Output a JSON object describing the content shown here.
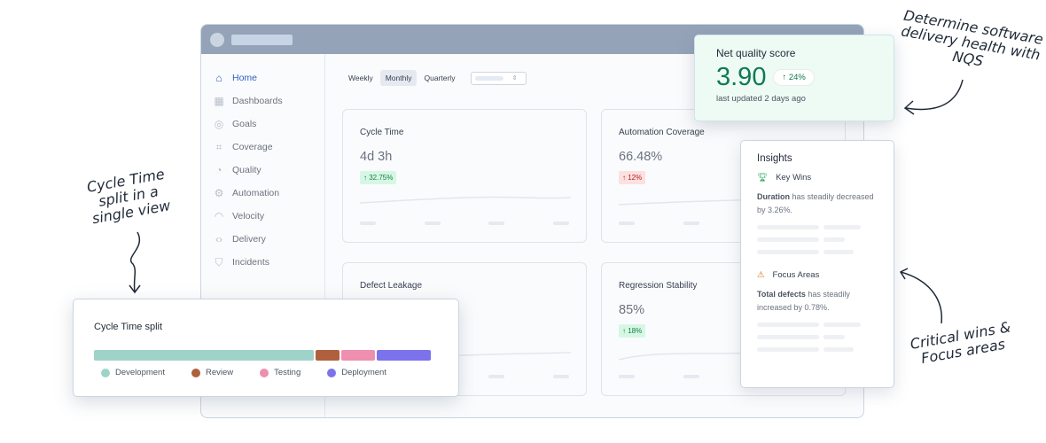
{
  "sidebar": {
    "items": [
      {
        "label": "Home",
        "icon": "home-icon",
        "active": true
      },
      {
        "label": "Dashboards",
        "icon": "grid-icon"
      },
      {
        "label": "Goals",
        "icon": "target-icon"
      },
      {
        "label": "Coverage",
        "icon": "coverage-icon"
      },
      {
        "label": "Quality",
        "icon": "pie-icon"
      },
      {
        "label": "Automation",
        "icon": "robot-arm-icon"
      },
      {
        "label": "Velocity",
        "icon": "gauge-icon"
      },
      {
        "label": "Delivery",
        "icon": "code-icon"
      },
      {
        "label": "Incidents",
        "icon": "shield-icon"
      }
    ]
  },
  "periods": {
    "options": [
      "Weekly",
      "Monthly",
      "Quarterly"
    ],
    "selected": "Monthly"
  },
  "cards": [
    {
      "title": "Cycle Time",
      "value": "4d 3h",
      "change": "↑ 32.75%",
      "trend": "up"
    },
    {
      "title": "Automation Coverage",
      "value": "66.48%",
      "change": "↑ 12%",
      "trend": "down"
    },
    {
      "title": "Defect Leakage",
      "value": "",
      "change": "",
      "trend": ""
    },
    {
      "title": "Regression Stability",
      "value": "85%",
      "change": "↑ 18%",
      "trend": "up"
    }
  ],
  "nqs": {
    "title": "Net quality score",
    "score": "3.90",
    "change": "24%",
    "updated": "last updated 2 days ago",
    "color": "#0e7a52"
  },
  "insights": {
    "title": "Insights",
    "key_wins": {
      "label": "Key Wins",
      "bold": "Duration",
      "text": " has steadily decreased by 3.26%."
    },
    "focus": {
      "label": "Focus Areas",
      "bold": "Total defects",
      "text": " has steadily increased by 0.78%."
    }
  },
  "split": {
    "title": "Cycle Time split",
    "segments": [
      {
        "label": "Development",
        "share": 0.65,
        "color": "#9fd3ca"
      },
      {
        "label": "Review",
        "share": 0.07,
        "color": "#b0603c"
      },
      {
        "label": "Testing",
        "share": 0.1,
        "color": "#ee8fb0"
      },
      {
        "label": "Deployment",
        "share": 0.16,
        "color": "#7c72ec"
      }
    ]
  },
  "annotations": {
    "nqs": "Determine software delivery health with NQS",
    "split": "Cycle Time split in a single view",
    "insights": "Critical wins & Focus areas"
  }
}
